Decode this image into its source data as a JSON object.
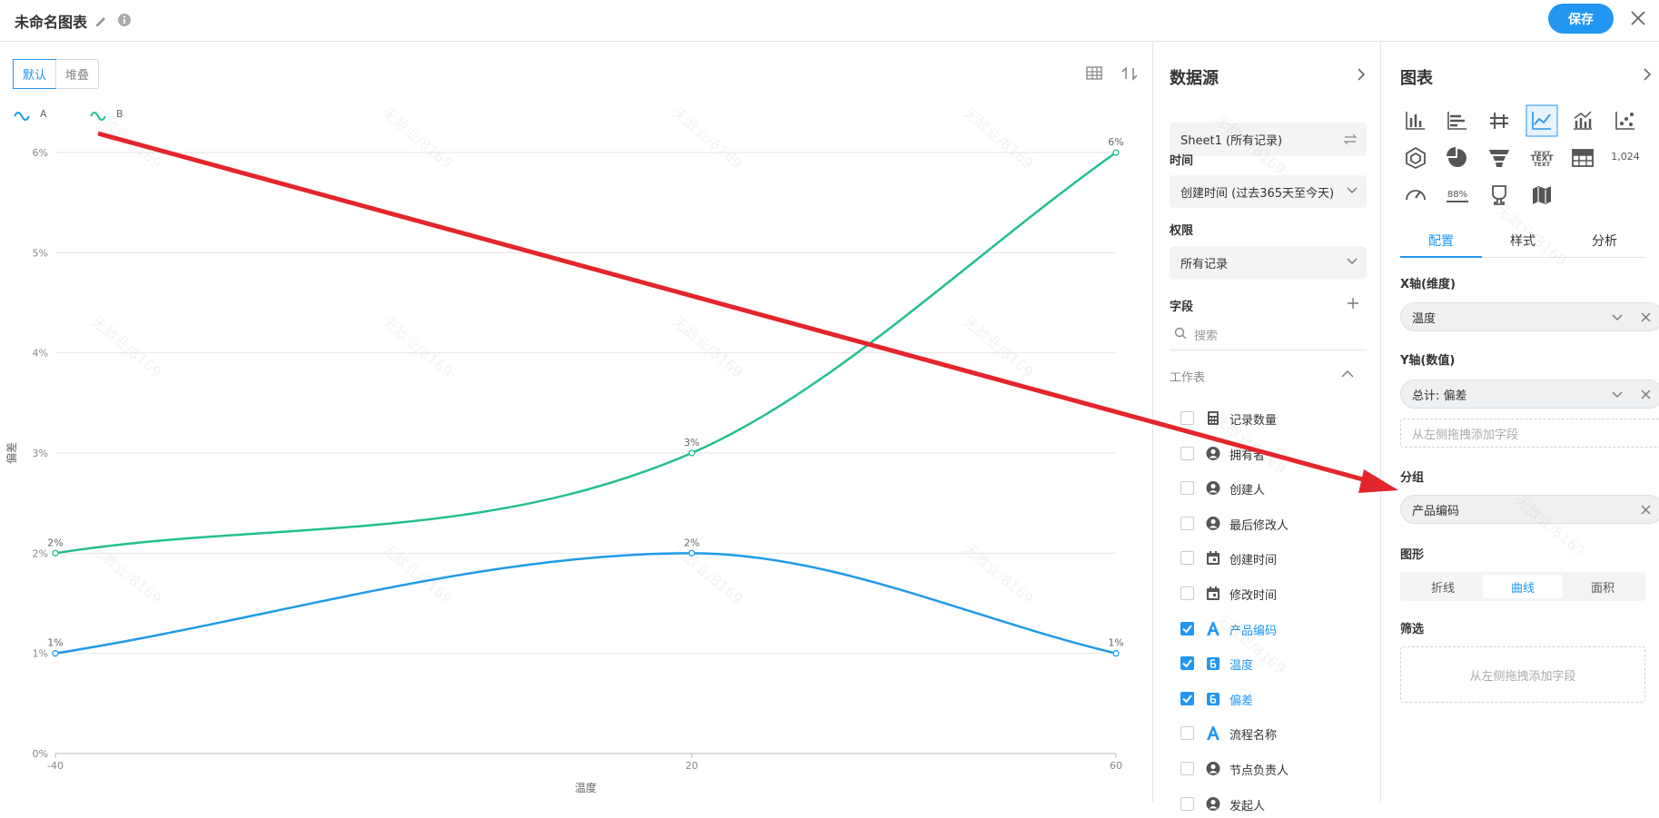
{
  "header": {
    "title": "未命名图表",
    "save": "保存"
  },
  "toolbar": {
    "modes": [
      "默认",
      "堆叠"
    ],
    "active_mode": 0
  },
  "watermark": "无敌业/8169",
  "chart_data": {
    "type": "line",
    "curve": "smooth",
    "x_label": "温度",
    "y_label": "偏差",
    "x": [
      -40,
      20,
      60
    ],
    "xlim": [
      -40,
      60
    ],
    "xticks": [
      -40,
      20,
      60
    ],
    "ylim": [
      0,
      6
    ],
    "yticks": [
      {
        "value": 0,
        "label": "0%"
      },
      {
        "value": 1,
        "label": "1%"
      },
      {
        "value": 2,
        "label": "2%"
      },
      {
        "value": 3,
        "label": "3%"
      },
      {
        "value": 4,
        "label": "4%"
      },
      {
        "value": 5,
        "label": "5%"
      },
      {
        "value": 6,
        "label": "6%"
      }
    ],
    "grid": true,
    "legend": "top-left",
    "series": [
      {
        "name": "A",
        "color": "#1e9be8",
        "values": [
          1,
          2,
          1
        ],
        "value_labels": [
          "1%",
          "2%",
          "1%"
        ]
      },
      {
        "name": "B",
        "color": "#22bf8e",
        "values": [
          2,
          3,
          6
        ],
        "value_labels": [
          "2%",
          "3%",
          "6%"
        ]
      }
    ]
  },
  "data_source": {
    "title": "数据源",
    "sheet": "Sheet1 (所有记录)",
    "time_label": "时间",
    "time_value": "创建时间 (过去365天至今天)",
    "permission_label": "权限",
    "permission_value": "所有记录",
    "fields_label": "字段",
    "search": "搜索",
    "worksheet": "工作表",
    "fields": [
      {
        "name": "记录数量",
        "kind": "calc",
        "checked": false
      },
      {
        "name": "拥有者",
        "kind": "user",
        "checked": false
      },
      {
        "name": "创建人",
        "kind": "user",
        "checked": false
      },
      {
        "name": "最后修改人",
        "kind": "user",
        "checked": false
      },
      {
        "name": "创建时间",
        "kind": "date",
        "checked": false
      },
      {
        "name": "修改时间",
        "kind": "date",
        "checked": false
      },
      {
        "name": "产品编码",
        "kind": "text",
        "checked": true
      },
      {
        "name": "温度",
        "kind": "number",
        "checked": true
      },
      {
        "name": "偏差",
        "kind": "number",
        "checked": true
      },
      {
        "name": "流程名称",
        "kind": "text",
        "checked": false
      },
      {
        "name": "节点负责人",
        "kind": "user",
        "checked": false
      },
      {
        "name": "发起人",
        "kind": "user",
        "checked": false
      }
    ]
  },
  "chart_panel": {
    "title": "图表",
    "icon_texts": [
      "TEXT",
      "1,024",
      "88%"
    ],
    "tabs": [
      "配置",
      "样式",
      "分析"
    ],
    "active_tab": 0,
    "x_axis_label": "X轴(维度)",
    "x_axis_field": "温度",
    "y_axis_label": "Y轴(数值)",
    "y_axis_field": "总计: 偏差",
    "drop_hint": "从左侧拖拽添加字段",
    "group_label": "分组",
    "group_field": "产品编码",
    "shape_label": "图形",
    "shapes": [
      "折线",
      "曲线",
      "面积"
    ],
    "active_shape": 1,
    "filter_label": "筛选"
  }
}
